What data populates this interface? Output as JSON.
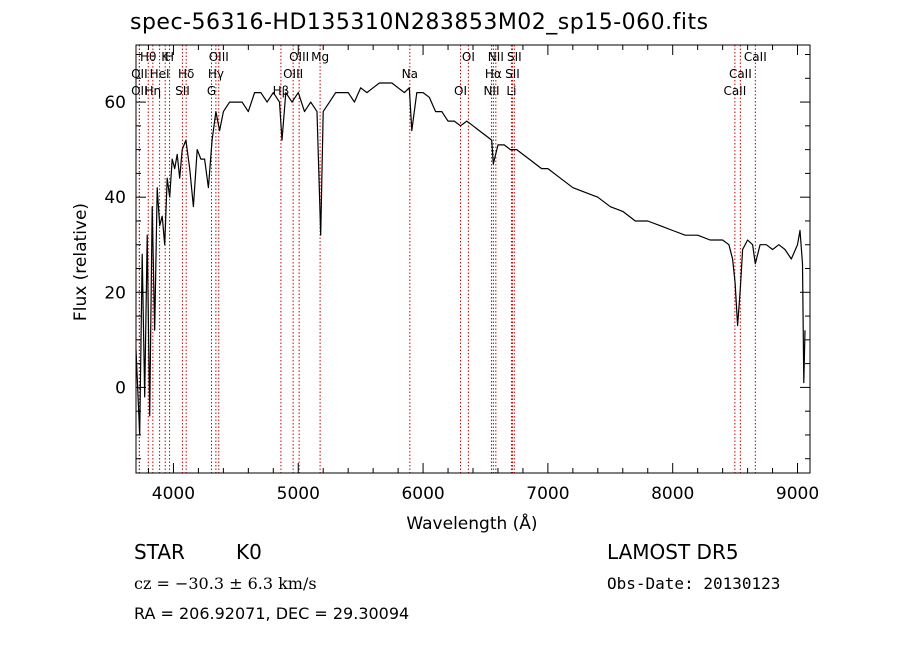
{
  "title": "spec-56316-HD135310N283853M02_sp15-060.fits",
  "footer": {
    "object_class": "STAR",
    "subclass": "K0",
    "survey": "LAMOST DR5",
    "cz": "cz = −30.3 ± 6.3 km/s",
    "obs_date": "Obs-Date: 20130123",
    "radec": "RA = 206.92071, DEC =  29.30094"
  },
  "chart_data": {
    "type": "line",
    "xlabel": "Wavelength (Å)",
    "ylabel": "Flux (relative)",
    "xlim": [
      3700,
      9100
    ],
    "ylim": [
      -18,
      72
    ],
    "xticks": [
      4000,
      5000,
      6000,
      7000,
      8000,
      9000
    ],
    "yticks": [
      0,
      20,
      40,
      60
    ],
    "line_color": "#000000",
    "marker_color": "#cc0000",
    "series": [
      {
        "x": [
          3700,
          3730,
          3750,
          3770,
          3790,
          3810,
          3830,
          3850,
          3870,
          3890,
          3910,
          3930,
          3950,
          3970,
          3990,
          4010,
          4030,
          4050,
          4070,
          4100,
          4130,
          4160,
          4190,
          4220,
          4250,
          4280,
          4310,
          4340,
          4370,
          4400,
          4450,
          4500,
          4550,
          4600,
          4650,
          4700,
          4750,
          4800,
          4850,
          4870,
          4900,
          4950,
          5000,
          5050,
          5100,
          5150,
          5180,
          5200,
          5250,
          5300,
          5350,
          5400,
          5450,
          5500,
          5550,
          5600,
          5650,
          5700,
          5750,
          5800,
          5850,
          5890,
          5910,
          5950,
          6000,
          6050,
          6100,
          6150,
          6200,
          6250,
          6300,
          6350,
          6400,
          6450,
          6500,
          6550,
          6563,
          6600,
          6650,
          6700,
          6750,
          6800,
          6850,
          6900,
          6950,
          7000,
          7100,
          7200,
          7300,
          7400,
          7500,
          7600,
          7700,
          7800,
          7900,
          8000,
          8100,
          8200,
          8300,
          8400,
          8450,
          8480,
          8500,
          8520,
          8542,
          8560,
          8600,
          8640,
          8662,
          8700,
          8750,
          8800,
          8850,
          8900,
          8950,
          9000,
          9020,
          9040,
          9050,
          9060
        ],
        "y": [
          8,
          -10,
          28,
          -2,
          32,
          -6,
          38,
          12,
          42,
          34,
          36,
          30,
          44,
          40,
          48,
          46,
          49,
          44,
          50,
          52,
          46,
          38,
          50,
          48,
          48,
          42,
          52,
          58,
          54,
          58,
          60,
          60,
          60,
          58,
          62,
          62,
          60,
          62,
          60,
          52,
          62,
          60,
          62,
          58,
          60,
          58,
          32,
          58,
          60,
          62,
          62,
          62,
          60,
          63,
          62,
          63,
          64,
          64,
          64,
          63,
          62,
          63,
          54,
          62,
          62,
          61,
          58,
          58,
          56,
          56,
          55,
          56,
          55,
          54,
          53,
          52,
          47,
          51,
          51,
          50,
          50,
          49,
          48,
          47,
          46,
          46,
          44,
          42,
          41,
          40,
          38,
          37,
          35,
          35,
          34,
          33,
          32,
          32,
          31,
          31,
          30,
          27,
          22,
          13,
          21,
          29,
          31,
          30,
          26,
          30,
          30,
          29,
          30,
          29,
          27,
          30,
          33,
          26,
          1,
          12
        ]
      }
    ],
    "lines": [
      {
        "label": "Hθ",
        "wavelength": 3798
      },
      {
        "label": "OII",
        "wavelength": 3727
      },
      {
        "label": "OII",
        "wavelength": 3727
      },
      {
        "label": "K",
        "wavelength": 3934
      },
      {
        "label": "HeI",
        "wavelength": 3889
      },
      {
        "label": "Hη",
        "wavelength": 3835
      },
      {
        "label": "H",
        "wavelength": 3969
      },
      {
        "label": "Hδ",
        "wavelength": 4102
      },
      {
        "label": "SII",
        "wavelength": 4072
      },
      {
        "label": "OIII",
        "wavelength": 4363
      },
      {
        "label": "Hγ",
        "wavelength": 4340
      },
      {
        "label": "G",
        "wavelength": 4305
      },
      {
        "label": "OIII",
        "wavelength": 5007
      },
      {
        "label": "OIII",
        "wavelength": 4959
      },
      {
        "label": "Hβ",
        "wavelength": 4861
      },
      {
        "label": "Mg",
        "wavelength": 5175
      },
      {
        "label": "Na",
        "wavelength": 5894
      },
      {
        "label": "OI",
        "wavelength": 6300
      },
      {
        "label": "OI",
        "wavelength": 6363
      },
      {
        "label": "Hα",
        "wavelength": 6563
      },
      {
        "label": "NII",
        "wavelength": 6548
      },
      {
        "label": "NII",
        "wavelength": 6583
      },
      {
        "label": "SII",
        "wavelength": 6716
      },
      {
        "label": "Li",
        "wavelength": 6708
      },
      {
        "label": "SII",
        "wavelength": 6731
      },
      {
        "label": "CaII",
        "wavelength": 8542
      },
      {
        "label": "CaII",
        "wavelength": 8498
      },
      {
        "label": "CaII",
        "wavelength": 8662
      }
    ]
  }
}
